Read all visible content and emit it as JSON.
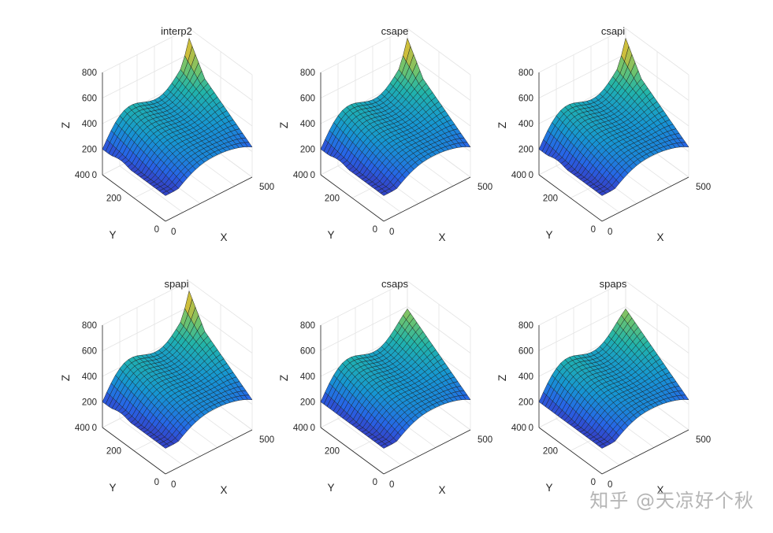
{
  "watermark": "知乎 @天凉好个秋",
  "chart_data": [
    {
      "type": "surface",
      "title": "interp2",
      "xlabel": "X",
      "ylabel": "Y",
      "zlabel": "Z",
      "xlim": [
        0,
        500
      ],
      "ylim": [
        0,
        400
      ],
      "zlim": [
        0,
        800
      ],
      "xticks": [
        0,
        500
      ],
      "yticks": [
        0,
        200,
        400
      ],
      "zticks": [
        0,
        200,
        400,
        600,
        800
      ],
      "colormap": "parula",
      "grid": true,
      "smooth": false
    },
    {
      "type": "surface",
      "title": "csape",
      "xlabel": "X",
      "ylabel": "Y",
      "zlabel": "Z",
      "xlim": [
        0,
        500
      ],
      "ylim": [
        0,
        400
      ],
      "zlim": [
        0,
        800
      ],
      "xticks": [
        0,
        500
      ],
      "yticks": [
        0,
        200,
        400
      ],
      "zticks": [
        0,
        200,
        400,
        600,
        800
      ],
      "colormap": "parula",
      "grid": true,
      "smooth": false
    },
    {
      "type": "surface",
      "title": "csapi",
      "xlabel": "X",
      "ylabel": "Y",
      "zlabel": "Z",
      "xlim": [
        0,
        500
      ],
      "ylim": [
        0,
        400
      ],
      "zlim": [
        0,
        800
      ],
      "xticks": [
        0,
        500
      ],
      "yticks": [
        0,
        200,
        400
      ],
      "zticks": [
        0,
        200,
        400,
        600,
        800
      ],
      "colormap": "parula",
      "grid": true,
      "smooth": false
    },
    {
      "type": "surface",
      "title": "spapi",
      "xlabel": "X",
      "ylabel": "Y",
      "zlabel": "Z",
      "xlim": [
        0,
        500
      ],
      "ylim": [
        0,
        400
      ],
      "zlim": [
        0,
        800
      ],
      "xticks": [
        0,
        500
      ],
      "yticks": [
        0,
        200,
        400
      ],
      "zticks": [
        0,
        200,
        400,
        600,
        800
      ],
      "colormap": "parula",
      "grid": true,
      "smooth": false
    },
    {
      "type": "surface",
      "title": "csaps",
      "xlabel": "X",
      "ylabel": "Y",
      "zlabel": "Z",
      "xlim": [
        0,
        500
      ],
      "ylim": [
        0,
        400
      ],
      "zlim": [
        0,
        800
      ],
      "xticks": [
        0,
        500
      ],
      "yticks": [
        0,
        200,
        400
      ],
      "zticks": [
        0,
        200,
        400,
        600,
        800
      ],
      "colormap": "parula",
      "grid": true,
      "smooth": true
    },
    {
      "type": "surface",
      "title": "spaps",
      "xlabel": "X",
      "ylabel": "Y",
      "zlabel": "Z",
      "xlim": [
        0,
        500
      ],
      "ylim": [
        0,
        400
      ],
      "zlim": [
        0,
        800
      ],
      "xticks": [
        0,
        500
      ],
      "yticks": [
        0,
        200,
        400
      ],
      "zticks": [
        0,
        200,
        400,
        600,
        800
      ],
      "colormap": "parula",
      "grid": true,
      "smooth": true
    }
  ]
}
